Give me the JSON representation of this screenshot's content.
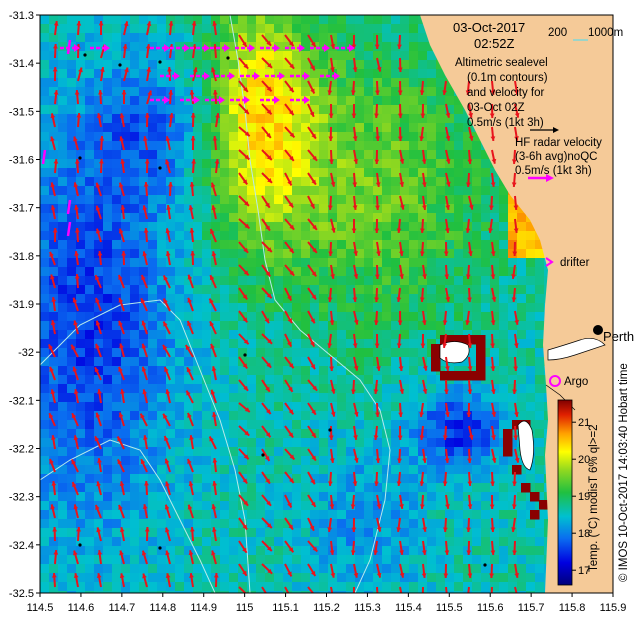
{
  "map": {
    "lon_ticks": [
      "114.5",
      "114.6",
      "114.7",
      "114.8",
      "114.9",
      "115",
      "115.1",
      "115.2",
      "115.3",
      "115.4",
      "115.5",
      "115.6",
      "115.7",
      "115.8",
      "115.9"
    ],
    "lat_ticks": [
      "-31.3",
      "-31.4",
      "-31.5",
      "-31.6",
      "-31.7",
      "-31.8",
      "-31.9",
      "-32",
      "-32.1",
      "-32.2",
      "-32.3",
      "-32.4",
      "-32.5"
    ],
    "lon_range": [
      114.5,
      115.9
    ],
    "lat_range": [
      -32.5,
      -31.3
    ]
  },
  "info": {
    "date": "03-Oct-2017",
    "time": "02:52Z",
    "isobath_200": "200",
    "isobath_1000": "1000m",
    "altimetry_lines": [
      "Altimetric sealevel",
      "(0.1m contours)",
      "and velocity for",
      "03-Oct 02Z",
      "0.5m/s (1kt 3h)"
    ],
    "hf_lines": [
      "HF radar velocity",
      "(3-6h avg)noQC",
      "0.5m/s (1kt 3h)"
    ],
    "drifter_label": "drifter",
    "argo_label": "Argo",
    "city_label": "Perth",
    "credit": "© IMOS 10-Oct-2017 14:03:40 Hobart time"
  },
  "colorbar": {
    "title": "Temp. (°C) modisT 6% ql>=2",
    "ticks": [
      "17",
      "18",
      "19",
      "20",
      "21"
    ],
    "min": 16.6,
    "max": 21.6
  },
  "colors": {
    "arrow": "#e8141c",
    "hf_arrow": "#ff00ff",
    "land": "#f5ca98",
    "isobath": "#b0e8e8",
    "argo": "#ff00ff"
  }
}
